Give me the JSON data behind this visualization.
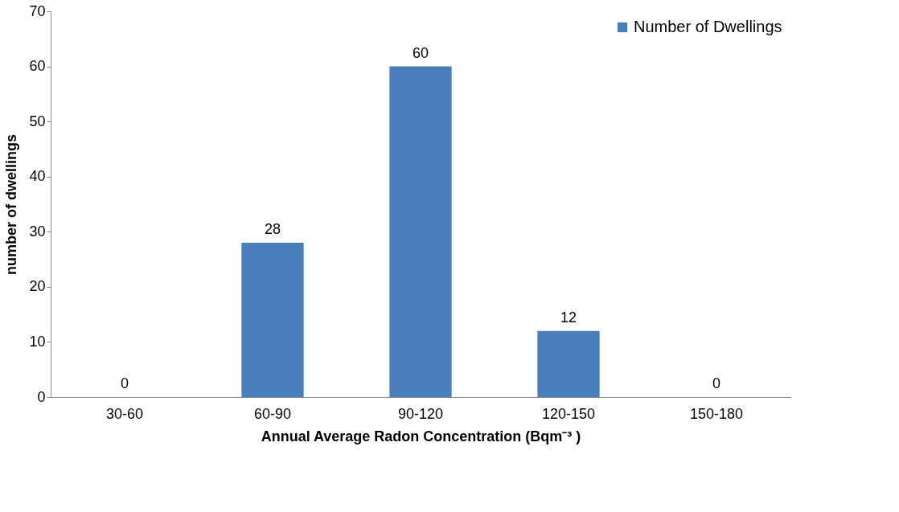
{
  "chart_data": {
    "type": "bar",
    "xlabel": "Annual Average Radon Concentration (Bqm⁻³ )",
    "ylabel": "number of dwellings",
    "categories": [
      "30-60",
      "60-90",
      "90-120",
      "120-150",
      "150-180"
    ],
    "series": [
      {
        "name": "Number of Dwellings",
        "color": "#4a7ebb",
        "values": [
          0,
          28,
          60,
          12,
          0
        ]
      }
    ],
    "ylim": [
      0,
      70
    ],
    "yticks": [
      0,
      10,
      20,
      30,
      40,
      50,
      60,
      70
    ],
    "grid": false,
    "legend": "top right",
    "data_labels": true
  }
}
